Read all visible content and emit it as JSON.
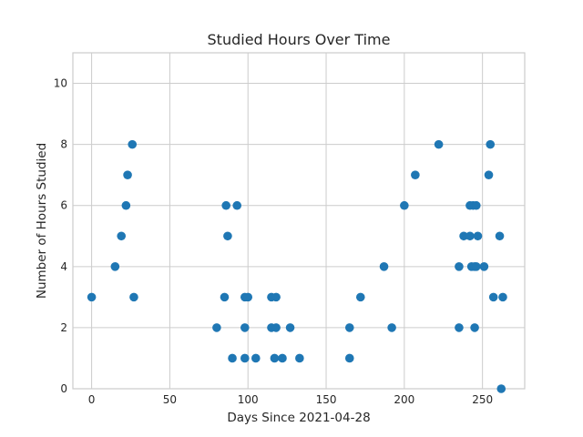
{
  "chart_data": {
    "type": "scatter",
    "title": "Studied Hours Over Time",
    "xlabel": "Days Since 2021-04-28",
    "ylabel": "Number of Hours Studied",
    "xlim": [
      -12,
      277
    ],
    "ylim": [
      0,
      11
    ],
    "xticks": [
      0,
      50,
      100,
      150,
      200,
      250
    ],
    "yticks": [
      0,
      2,
      4,
      6,
      8,
      10
    ],
    "grid": true,
    "marker_color": "#1f77b4",
    "series": [
      {
        "points": [
          [
            0,
            3
          ],
          [
            15,
            4
          ],
          [
            19,
            5
          ],
          [
            22,
            6
          ],
          [
            23,
            7
          ],
          [
            26,
            8
          ],
          [
            27,
            3
          ],
          [
            80,
            2
          ],
          [
            85,
            3
          ],
          [
            86,
            6
          ],
          [
            87,
            5
          ],
          [
            90,
            1
          ],
          [
            93,
            6
          ],
          [
            98,
            3
          ],
          [
            98,
            2
          ],
          [
            98,
            1
          ],
          [
            100,
            3
          ],
          [
            105,
            1
          ],
          [
            115,
            3
          ],
          [
            115,
            2
          ],
          [
            117,
            1
          ],
          [
            118,
            2
          ],
          [
            118,
            3
          ],
          [
            122,
            1
          ],
          [
            127,
            2
          ],
          [
            133,
            1
          ],
          [
            165,
            2
          ],
          [
            165,
            1
          ],
          [
            172,
            3
          ],
          [
            187,
            4
          ],
          [
            192,
            2
          ],
          [
            200,
            6
          ],
          [
            207,
            7
          ],
          [
            222,
            8
          ],
          [
            235,
            2
          ],
          [
            235,
            4
          ],
          [
            238,
            5
          ],
          [
            242,
            6
          ],
          [
            242,
            5
          ],
          [
            243,
            4
          ],
          [
            244,
            6
          ],
          [
            245,
            4
          ],
          [
            245,
            2
          ],
          [
            246,
            4
          ],
          [
            246,
            6
          ],
          [
            247,
            5
          ],
          [
            251,
            4
          ],
          [
            254,
            7
          ],
          [
            255,
            8
          ],
          [
            257,
            3
          ],
          [
            261,
            5
          ],
          [
            262,
            0
          ],
          [
            263,
            3
          ]
        ]
      }
    ]
  }
}
